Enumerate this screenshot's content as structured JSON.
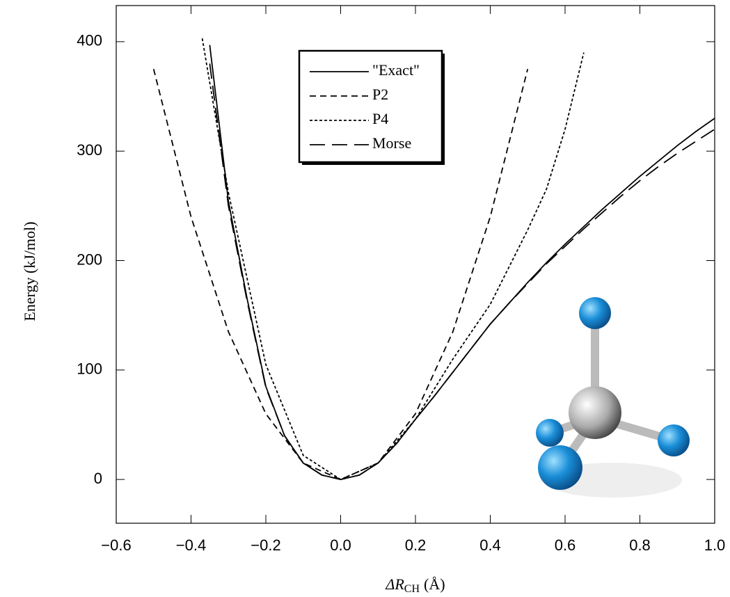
{
  "chart_data": {
    "type": "line",
    "y_label": "Energy (kJ/mol)",
    "x_label": [
      "ΔR",
      "CH",
      "(Å)"
    ],
    "xlim": [
      -0.6,
      1.0
    ],
    "xticks": [
      {
        "value": -0.6,
        "label": "−0.6"
      },
      {
        "value": -0.4,
        "label": "−0.4"
      },
      {
        "value": -0.2,
        "label": "−0.2"
      },
      {
        "value": 0,
        "label": "0.0"
      },
      0.2,
      0.4,
      0.6,
      0.8,
      {
        "value": 1,
        "label": "1.0"
      }
    ],
    "ylim": [
      -40,
      433
    ],
    "yticks": [
      0,
      100,
      200,
      300,
      400
    ],
    "legend": "upper center",
    "series": [
      {
        "name": "\"Exact\"",
        "color": "#000000",
        "x": [
          -0.35,
          -0.3,
          -0.25,
          -0.2,
          -0.15,
          -0.1,
          -0.05,
          0,
          0.05,
          0.1,
          0.15,
          0.2,
          0.25,
          0.3,
          0.35,
          0.4,
          0.45,
          0.5,
          0.55,
          0.6,
          0.65,
          0.7,
          0.75,
          0.8,
          0.85,
          0.9,
          0.95,
          1.0
        ],
        "values": [
          397,
          254,
          165,
          85,
          40,
          15,
          4,
          0,
          4,
          15,
          33,
          55,
          76,
          98,
          120,
          142,
          161,
          180,
          198,
          215,
          231,
          247,
          262,
          277,
          291,
          305,
          318,
          330
        ]
      },
      {
        "name": "P2",
        "color": "#000000",
        "x": [
          -0.5,
          -0.4,
          -0.3,
          -0.2,
          -0.1,
          0,
          0.1,
          0.2,
          0.3,
          0.4,
          0.5
        ],
        "values": [
          375,
          240,
          135,
          60,
          15,
          0,
          15,
          60,
          135,
          240,
          375
        ]
      },
      {
        "name": "P4",
        "color": "#000000",
        "x": [
          -0.37,
          -0.3,
          -0.2,
          -0.1,
          0,
          0.1,
          0.2,
          0.3,
          0.4,
          0.5,
          0.55,
          0.6,
          0.65
        ],
        "values": [
          403,
          262,
          105,
          22,
          0,
          15,
          55,
          110,
          160,
          228,
          265,
          320,
          390
        ]
      },
      {
        "name": "Morse",
        "color": "#000000",
        "x": [
          -0.35,
          -0.3,
          -0.25,
          -0.2,
          -0.15,
          -0.1,
          -0.05,
          0,
          0.05,
          0.1,
          0.15,
          0.2,
          0.25,
          0.3,
          0.35,
          0.4,
          0.45,
          0.5,
          0.55,
          0.6,
          0.65,
          0.7,
          0.75,
          0.8,
          0.85,
          0.9,
          0.95,
          1.0
        ],
        "values": [
          380,
          250,
          163,
          84,
          40,
          15,
          4,
          0,
          4,
          15,
          33,
          55,
          76,
          98,
          120,
          142,
          161,
          179,
          197,
          213,
          229,
          244,
          259,
          273,
          286,
          298,
          309,
          320
        ]
      }
    ]
  }
}
